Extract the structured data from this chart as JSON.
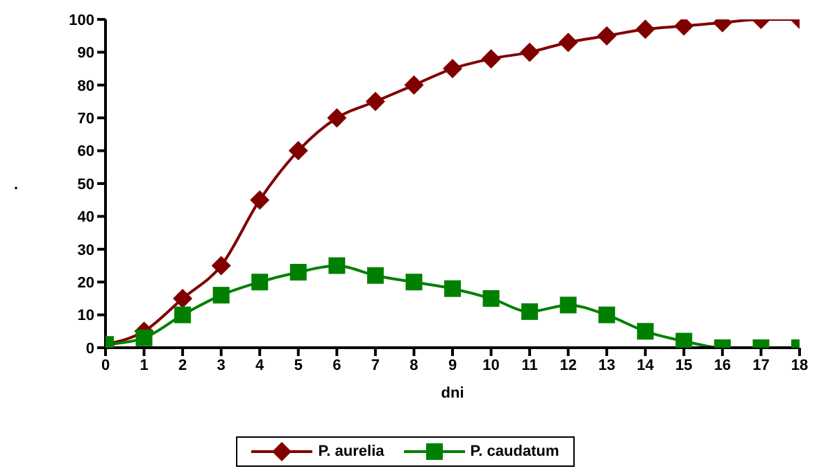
{
  "chart_data": {
    "type": "line",
    "xlabel": "dni",
    "ylabel": ".",
    "x": [
      0,
      1,
      2,
      3,
      4,
      5,
      6,
      7,
      8,
      9,
      10,
      11,
      12,
      13,
      14,
      15,
      16,
      17,
      18
    ],
    "series": [
      {
        "name": "P. aurelia",
        "color": "#800000",
        "marker": "diamond",
        "values": [
          1,
          5,
          15,
          25,
          45,
          60,
          70,
          75,
          80,
          85,
          88,
          90,
          93,
          95,
          97,
          98,
          99,
          100,
          100
        ]
      },
      {
        "name": "P. caudatum",
        "color": "#008000",
        "marker": "square",
        "values": [
          1,
          3,
          10,
          16,
          20,
          23,
          25,
          22,
          20,
          18,
          15,
          11,
          13,
          10,
          5,
          2,
          0,
          0,
          0
        ]
      }
    ],
    "xlim": [
      0,
      18
    ],
    "xticks": [
      0,
      1,
      2,
      3,
      4,
      5,
      6,
      7,
      8,
      9,
      10,
      11,
      12,
      13,
      14,
      15,
      16,
      17,
      18
    ],
    "ylim": [
      0,
      100
    ],
    "yticks": [
      0,
      10,
      20,
      30,
      40,
      50,
      60,
      70,
      80,
      90,
      100
    ],
    "grid": false,
    "legend": "bottom",
    "line_style": "solid"
  }
}
